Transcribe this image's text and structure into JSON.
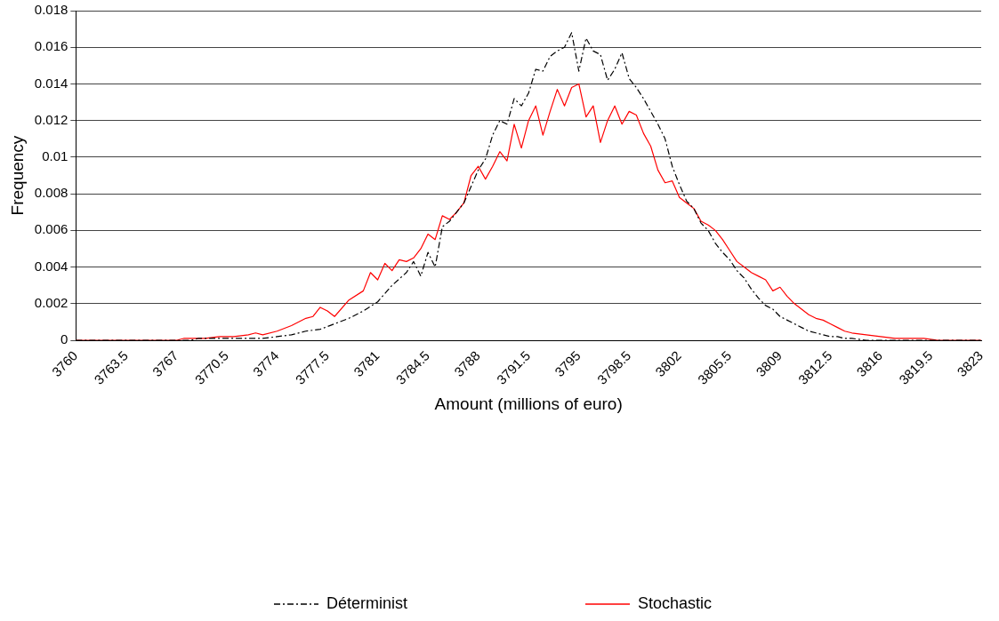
{
  "chart_data": {
    "type": "line",
    "xlabel": "Amount (millions of euro)",
    "ylabel": "Frequency",
    "xlim": [
      3760,
      3823
    ],
    "xticks": [
      3760,
      3763.5,
      3767,
      3770.5,
      3774,
      3777.5,
      3781,
      3784.5,
      3788,
      3791.5,
      3795,
      3798.5,
      3802,
      3805.5,
      3809,
      3812.5,
      3816,
      3819.5,
      3823
    ],
    "ylim": [
      0,
      0.018
    ],
    "yticks": [
      0,
      0.002,
      0.004,
      0.006,
      0.008,
      0.01,
      0.012,
      0.014,
      0.016,
      0.018
    ],
    "grid": "y",
    "legend": "bottom",
    "marker": "none",
    "series": [
      {
        "name": "Déterminist",
        "color": "#000000",
        "line_style": "dashed",
        "x": [
          3760,
          3764,
          3768,
          3768.5,
          3770,
          3772,
          3773,
          3774,
          3775,
          3776,
          3777,
          3778,
          3779,
          3780,
          3781,
          3782,
          3783,
          3783.5,
          3784,
          3784.5,
          3785,
          3785.5,
          3786,
          3787,
          3788,
          3788.5,
          3789,
          3789.5,
          3790,
          3790.5,
          3791,
          3791.5,
          3792,
          3792.5,
          3793,
          3793.5,
          3794,
          3794.5,
          3795,
          3795.5,
          3796,
          3796.5,
          3797,
          3797.5,
          3798,
          3798.5,
          3799,
          3799.5,
          3800,
          3800.5,
          3801,
          3801.5,
          3802,
          3802.5,
          3803,
          3803.5,
          3804,
          3804.5,
          3805,
          3805.5,
          3806,
          3806.5,
          3807,
          3807.5,
          3808,
          3808.5,
          3809,
          3809.5,
          3810,
          3810.5,
          3811,
          3811.5,
          3812,
          3812.5,
          3813,
          3813.5,
          3814,
          3815,
          3819,
          3823
        ],
        "values": [
          0,
          0,
          0,
          0.0001,
          0.0001,
          0.0001,
          0.0001,
          0.0002,
          0.0003,
          0.0005,
          0.0006,
          0.0009,
          0.0012,
          0.0016,
          0.0021,
          0.003,
          0.0037,
          0.0043,
          0.0035,
          0.0048,
          0.004,
          0.0062,
          0.0065,
          0.0075,
          0.0093,
          0.0099,
          0.0112,
          0.012,
          0.0118,
          0.0132,
          0.0128,
          0.0135,
          0.0148,
          0.0147,
          0.0155,
          0.0158,
          0.016,
          0.0168,
          0.0147,
          0.0165,
          0.0158,
          0.0156,
          0.0142,
          0.0148,
          0.0157,
          0.0143,
          0.0138,
          0.0132,
          0.0125,
          0.0118,
          0.011,
          0.0095,
          0.0085,
          0.0076,
          0.0072,
          0.0064,
          0.006,
          0.0053,
          0.0048,
          0.0044,
          0.0038,
          0.0034,
          0.0028,
          0.0023,
          0.0019,
          0.0017,
          0.0013,
          0.0011,
          0.0009,
          0.0007,
          0.0005,
          0.0004,
          0.0003,
          0.0002,
          0.0002,
          0.0001,
          0.0001,
          0,
          0,
          0
        ]
      },
      {
        "name": "Stochastic",
        "color": "#ff0000",
        "line_style": "solid",
        "x": [
          3760,
          3764,
          3767,
          3767.5,
          3768,
          3769,
          3770,
          3771,
          3772,
          3772.5,
          3773,
          3774,
          3775,
          3776,
          3776.5,
          3777,
          3777.5,
          3778,
          3779,
          3780,
          3780.5,
          3781,
          3781.5,
          3782,
          3782.5,
          3783,
          3783.5,
          3784,
          3784.5,
          3785,
          3785.5,
          3786,
          3786.5,
          3787,
          3787.5,
          3788,
          3788.5,
          3789,
          3789.5,
          3790,
          3790.5,
          3791,
          3791.5,
          3792,
          3792.5,
          3793,
          3793.5,
          3794,
          3794.5,
          3795,
          3795.5,
          3796,
          3796.5,
          3797,
          3797.5,
          3798,
          3798.5,
          3799,
          3799.5,
          3800,
          3800.5,
          3801,
          3801.5,
          3802,
          3802.5,
          3803,
          3803.5,
          3804,
          3804.5,
          3805,
          3805.5,
          3806,
          3806.5,
          3807,
          3807.5,
          3808,
          3808.5,
          3809,
          3809.5,
          3810,
          3810.5,
          3811,
          3811.5,
          3812,
          3812.5,
          3813,
          3813.5,
          3814,
          3815,
          3816,
          3817,
          3818,
          3819,
          3820,
          3823
        ],
        "values": [
          0,
          0,
          0,
          0.0001,
          0.0001,
          0.0001,
          0.0002,
          0.0002,
          0.0003,
          0.0004,
          0.0003,
          0.0005,
          0.0008,
          0.0012,
          0.0013,
          0.0018,
          0.0016,
          0.0013,
          0.0022,
          0.0027,
          0.0037,
          0.0033,
          0.0042,
          0.0038,
          0.0044,
          0.0043,
          0.0045,
          0.005,
          0.0058,
          0.0055,
          0.0068,
          0.0066,
          0.007,
          0.0075,
          0.009,
          0.0095,
          0.0088,
          0.0095,
          0.0103,
          0.0098,
          0.0118,
          0.0105,
          0.012,
          0.0128,
          0.0112,
          0.0125,
          0.0137,
          0.0128,
          0.0138,
          0.014,
          0.0122,
          0.0128,
          0.0108,
          0.012,
          0.0128,
          0.0118,
          0.0125,
          0.0123,
          0.0113,
          0.0106,
          0.0093,
          0.0086,
          0.0087,
          0.0078,
          0.0075,
          0.0072,
          0.0065,
          0.0063,
          0.006,
          0.0055,
          0.0049,
          0.0043,
          0.004,
          0.0037,
          0.0035,
          0.0033,
          0.0027,
          0.0029,
          0.0024,
          0.002,
          0.0017,
          0.0014,
          0.0012,
          0.0011,
          0.0009,
          0.0007,
          0.0005,
          0.0004,
          0.0003,
          0.0002,
          0.0001,
          0.0001,
          0.0001,
          0,
          0
        ]
      }
    ]
  }
}
